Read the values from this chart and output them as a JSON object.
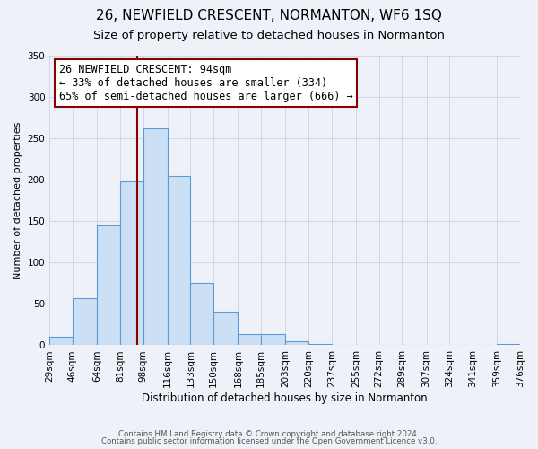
{
  "title": "26, NEWFIELD CRESCENT, NORMANTON, WF6 1SQ",
  "subtitle": "Size of property relative to detached houses in Normanton",
  "xlabel": "Distribution of detached houses by size in Normanton",
  "ylabel": "Number of detached properties",
  "footer_line1": "Contains HM Land Registry data © Crown copyright and database right 2024.",
  "footer_line2": "Contains public sector information licensed under the Open Government Licence v3.0.",
  "bin_edges": [
    29,
    46,
    64,
    81,
    98,
    116,
    133,
    150,
    168,
    185,
    203,
    220,
    237,
    255,
    272,
    289,
    307,
    324,
    341,
    359,
    376
  ],
  "bin_labels": [
    "29sqm",
    "46sqm",
    "64sqm",
    "81sqm",
    "98sqm",
    "116sqm",
    "133sqm",
    "150sqm",
    "168sqm",
    "185sqm",
    "203sqm",
    "220sqm",
    "237sqm",
    "255sqm",
    "272sqm",
    "289sqm",
    "307sqm",
    "324sqm",
    "341sqm",
    "359sqm",
    "376sqm"
  ],
  "counts": [
    10,
    57,
    145,
    198,
    262,
    204,
    75,
    41,
    13,
    14,
    5,
    2,
    0,
    0,
    0,
    0,
    0,
    0,
    0,
    2
  ],
  "bar_color": "#cce0f5",
  "bar_edge_color": "#5b9bd5",
  "property_line_x": 94,
  "property_line_color": "#8b0000",
  "annotation_line1": "26 NEWFIELD CRESCENT: 94sqm",
  "annotation_line2": "← 33% of detached houses are smaller (334)",
  "annotation_line3": "65% of semi-detached houses are larger (666) →",
  "annotation_box_edge_color": "#8b0000",
  "ylim": [
    0,
    350
  ],
  "yticks": [
    0,
    50,
    100,
    150,
    200,
    250,
    300,
    350
  ],
  "grid_color": "#c8d4e8",
  "bg_color": "#eef2f8",
  "title_fontsize": 11,
  "subtitle_fontsize": 9.5,
  "axis_label_fontsize": 8.5,
  "tick_fontsize": 7.5,
  "annotation_fontsize": 8.5,
  "ylabel_fontsize": 8
}
